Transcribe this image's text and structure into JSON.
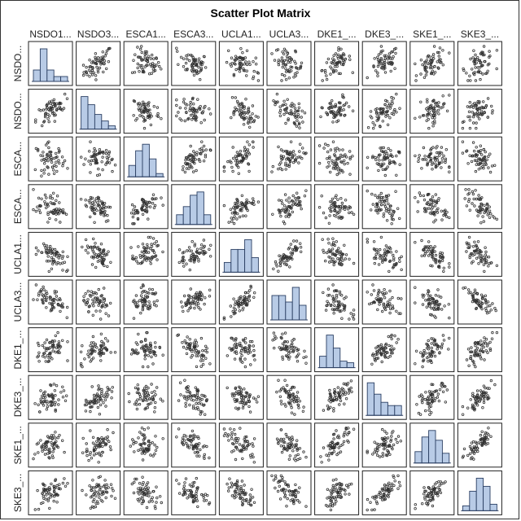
{
  "title": "Scatter Plot Matrix",
  "chart_data": {
    "type": "scatter",
    "title": "Scatter Plot Matrix",
    "variables": [
      "NSDO1...",
      "NSDO3...",
      "ESCA1...",
      "ESCA3...",
      "UCLA1...",
      "UCLA3...",
      "DKE1_...",
      "DKE3_...",
      "SKE1_...",
      "SKE3_..."
    ],
    "row_labels": [
      "NSDO...",
      "NSDO...",
      "ESCA...",
      "ESCA...",
      "UCLA1...",
      "UCLA3...",
      "DKE1_...",
      "DKE3_...",
      "SKE1_...",
      "SKE3_..."
    ],
    "diagonal": "histogram",
    "histograms": [
      [
        0.35,
        1.0,
        0.35,
        0.15,
        0.15
      ],
      [
        1.0,
        0.75,
        0.45,
        0.25,
        0.1
      ],
      [
        0.35,
        0.8,
        1.0,
        0.55,
        0.1
      ],
      [
        0.3,
        0.55,
        0.9,
        1.0,
        0.3
      ],
      [
        0.3,
        0.7,
        0.7,
        1.0,
        0.45
      ],
      [
        0.75,
        0.75,
        0.55,
        1.0,
        0.45
      ],
      [
        0.35,
        1.0,
        0.6,
        0.2,
        0.15
      ],
      [
        1.0,
        0.65,
        0.4,
        0.3,
        0.3
      ],
      [
        0.35,
        0.8,
        1.0,
        0.7,
        0.3
      ],
      [
        0.15,
        0.6,
        1.0,
        0.75,
        0.2
      ]
    ],
    "correlations": [
      [
        1,
        0.6,
        -0.1,
        -0.3,
        -0.4,
        -0.4,
        0.45,
        0.45,
        0.35,
        0.35
      ],
      [
        0.6,
        1,
        -0.2,
        -0.2,
        -0.5,
        -0.5,
        0.4,
        0.55,
        0.45,
        0.45
      ],
      [
        -0.1,
        -0.2,
        1,
        0.65,
        0.45,
        0.4,
        -0.2,
        -0.1,
        -0.3,
        -0.4
      ],
      [
        -0.3,
        -0.2,
        0.65,
        1,
        0.5,
        0.6,
        -0.4,
        -0.3,
        -0.4,
        -0.5
      ],
      [
        -0.4,
        -0.5,
        0.45,
        0.5,
        1,
        0.8,
        -0.4,
        -0.45,
        -0.5,
        -0.6
      ],
      [
        -0.4,
        -0.5,
        0.4,
        0.6,
        0.8,
        1,
        -0.55,
        -0.55,
        -0.6,
        -0.7
      ],
      [
        0.45,
        0.4,
        -0.2,
        -0.4,
        -0.4,
        -0.55,
        1,
        0.75,
        0.55,
        0.6
      ],
      [
        0.45,
        0.55,
        -0.1,
        -0.3,
        -0.45,
        -0.55,
        0.75,
        1,
        0.55,
        0.75
      ],
      [
        0.35,
        0.45,
        -0.3,
        -0.4,
        -0.5,
        -0.6,
        0.55,
        0.55,
        1,
        0.75
      ],
      [
        0.35,
        0.45,
        -0.4,
        -0.5,
        -0.6,
        -0.7,
        0.6,
        0.75,
        0.75,
        1
      ]
    ],
    "points_per_panel": 60,
    "grid": false,
    "legend": "none"
  }
}
